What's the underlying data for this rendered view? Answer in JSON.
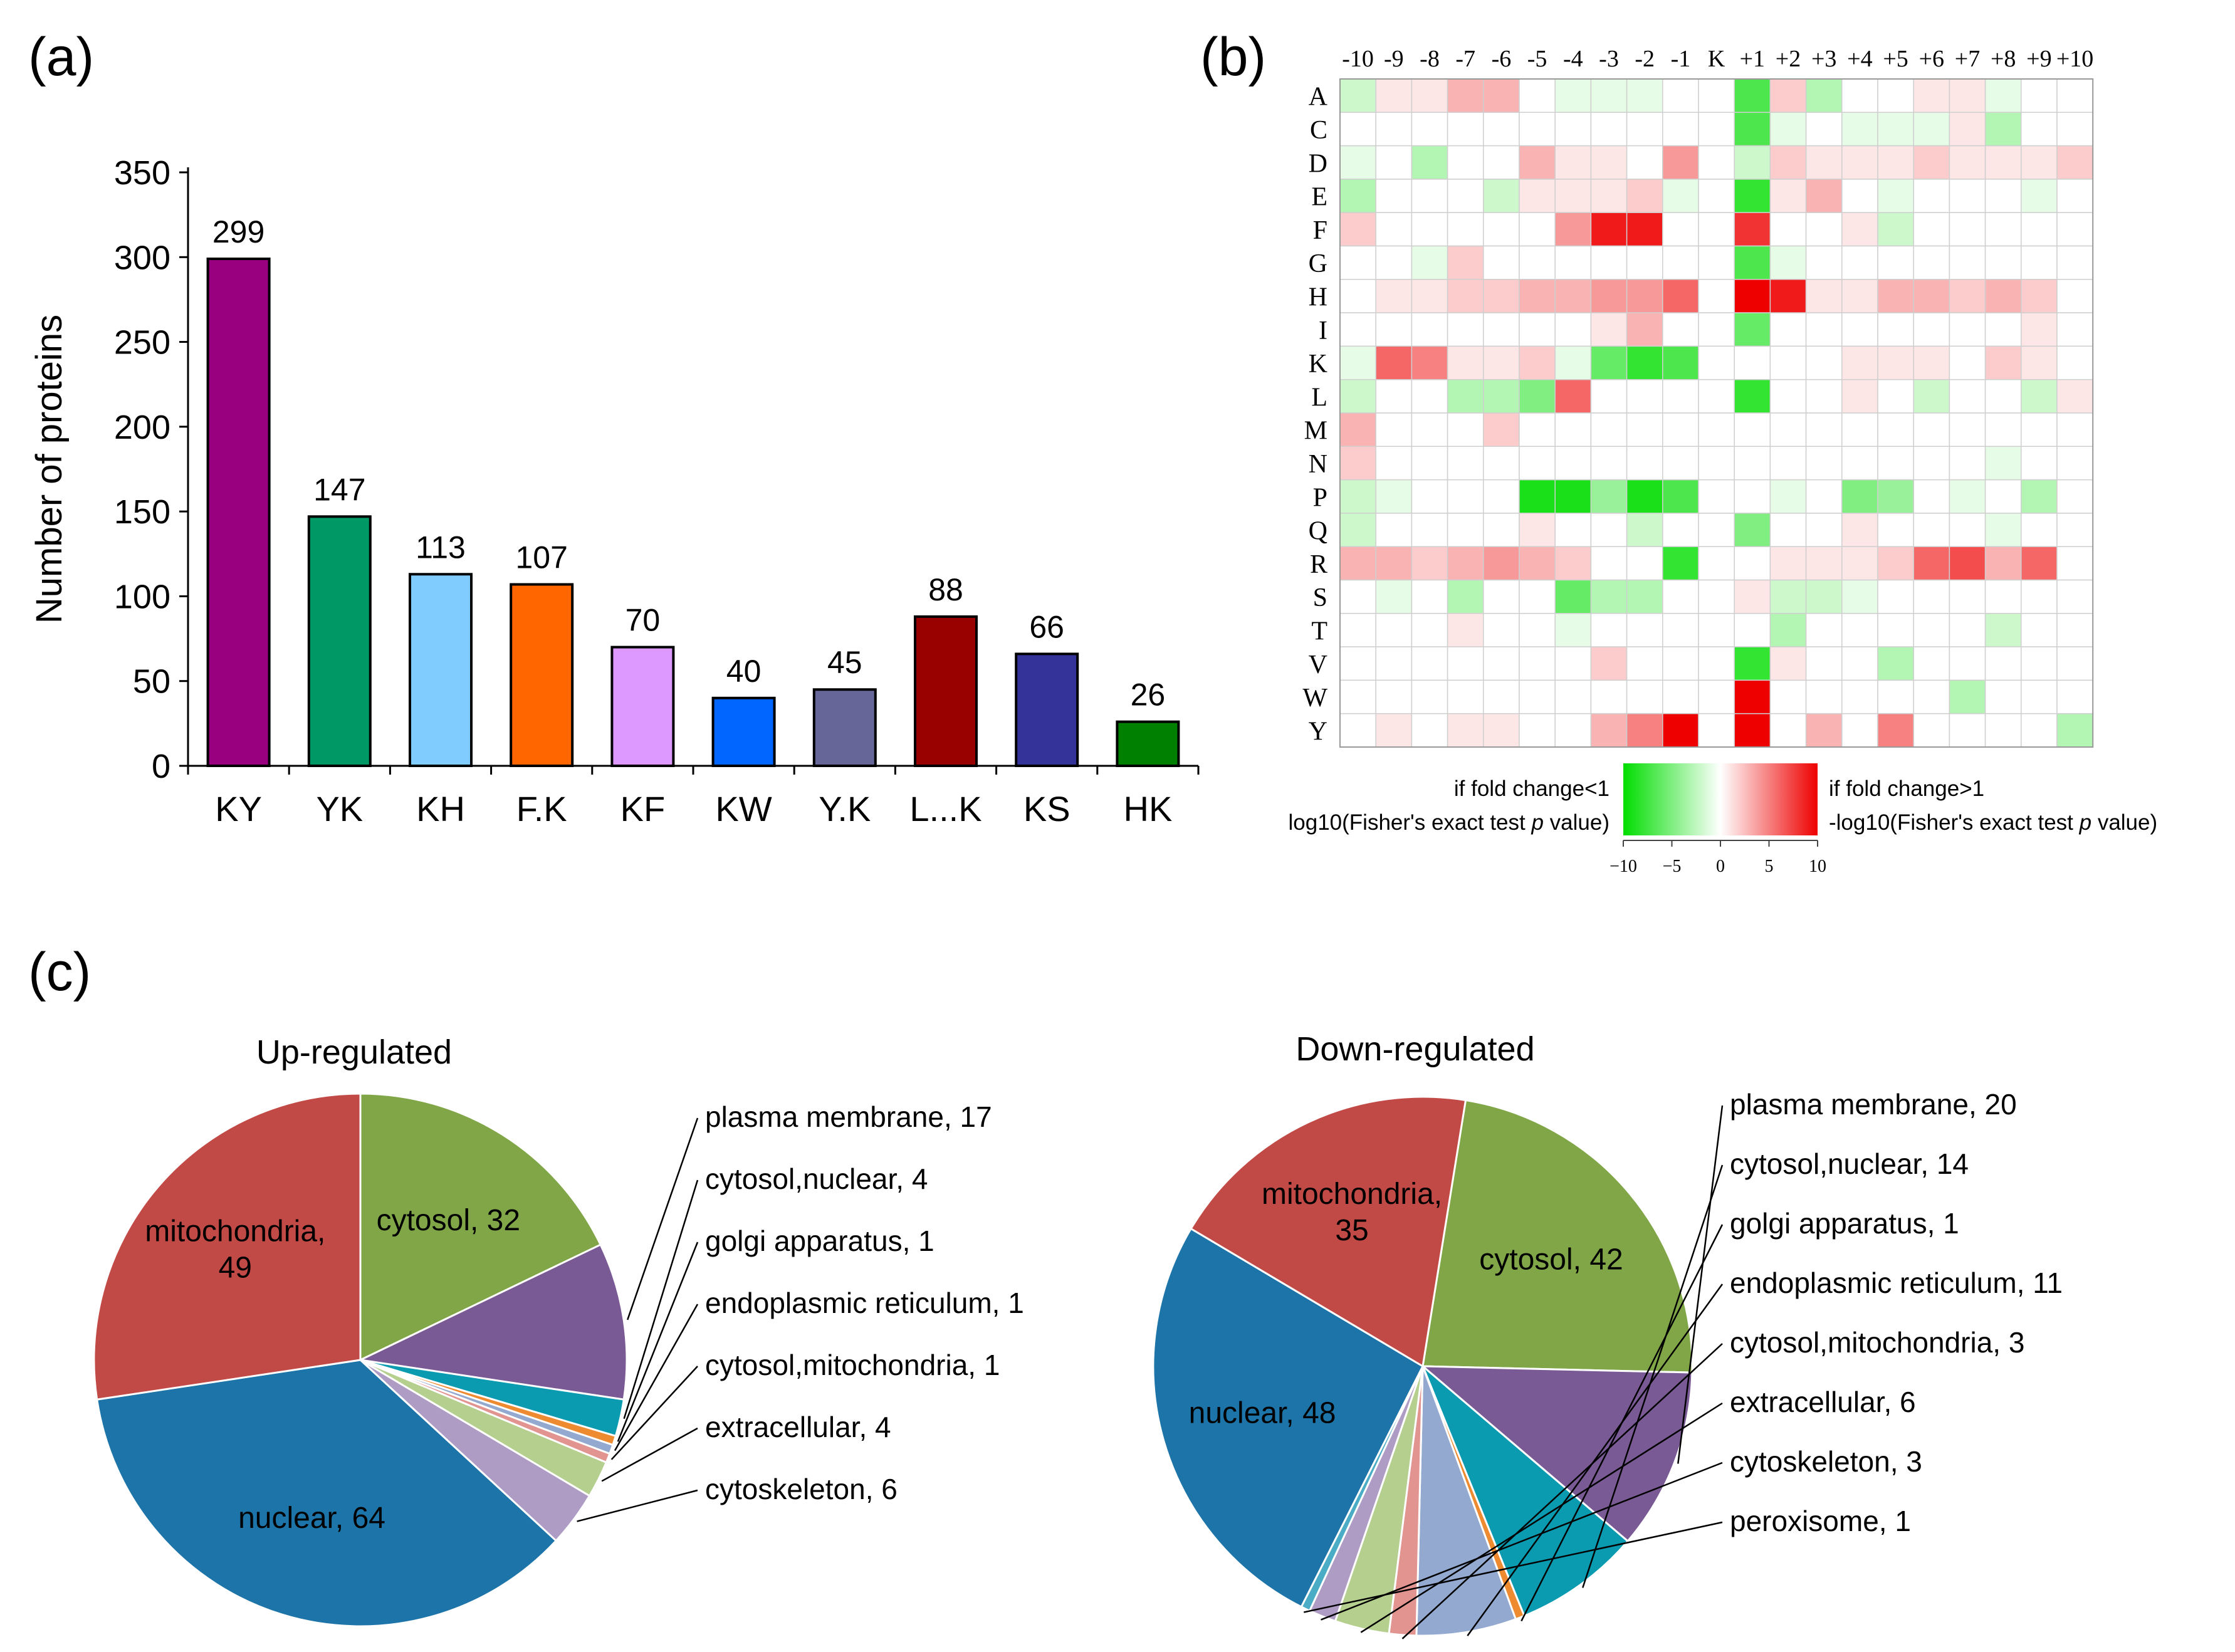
{
  "panel_labels": {
    "a": "(a)",
    "b": "(b)",
    "c": "(c)"
  },
  "chart_data": [
    {
      "type": "bar",
      "panel": "a",
      "title": "",
      "xlabel": "",
      "ylabel": "Number of proteins",
      "ylim": [
        0,
        350
      ],
      "yticks": [
        0,
        50,
        100,
        150,
        200,
        250,
        300,
        350
      ],
      "categories": [
        "KY",
        "YK",
        "KH",
        "F.K",
        "KF",
        "KW",
        "Y.K",
        "L...K",
        "KS",
        "HK"
      ],
      "values": [
        299,
        147,
        113,
        107,
        70,
        40,
        45,
        88,
        66,
        26
      ],
      "colors": [
        "#990080",
        "#009966",
        "#80CCFF",
        "#FF6600",
        "#DD99FF",
        "#0066FF",
        "#666699",
        "#990000",
        "#333399",
        "#008000"
      ]
    },
    {
      "type": "heatmap",
      "panel": "b",
      "columns": [
        "-10",
        "-9",
        "-8",
        "-7",
        "-6",
        "-5",
        "-4",
        "-3",
        "-2",
        "-1",
        "K",
        "+1",
        "+2",
        "+3",
        "+4",
        "+5",
        "+6",
        "+7",
        "+8",
        "+9",
        "+10"
      ],
      "rows": [
        "A",
        "C",
        "D",
        "E",
        "F",
        "G",
        "H",
        "I",
        "K",
        "L",
        "M",
        "N",
        "P",
        "Q",
        "R",
        "S",
        "T",
        "V",
        "W",
        "Y"
      ],
      "values": [
        [
          -2,
          1,
          1,
          3,
          3,
          0,
          -1,
          -1,
          -1,
          0,
          0,
          -7,
          2,
          -3,
          0,
          0,
          1,
          1,
          -1,
          0,
          0
        ],
        [
          0,
          0,
          0,
          0,
          0,
          0,
          0,
          0,
          0,
          0,
          0,
          -7,
          -1,
          0,
          -1,
          -1,
          -1,
          1,
          -3,
          0,
          0
        ],
        [
          -1,
          0,
          -3,
          0,
          0,
          3,
          1,
          1,
          0,
          4,
          0,
          -2,
          2,
          1,
          1,
          1,
          2,
          1,
          1,
          1,
          2
        ],
        [
          -3,
          0,
          0,
          0,
          -2,
          1,
          1,
          1,
          2,
          -1,
          0,
          -8,
          1,
          3,
          0,
          -1,
          0,
          0,
          0,
          -1,
          0
        ],
        [
          2,
          0,
          0,
          0,
          0,
          0,
          4,
          9,
          9,
          0,
          0,
          8,
          0,
          0,
          1,
          -2,
          0,
          0,
          0,
          0,
          0
        ],
        [
          0,
          0,
          -1,
          2,
          0,
          0,
          0,
          0,
          0,
          0,
          0,
          -7,
          -1,
          0,
          0,
          0,
          0,
          0,
          0,
          0,
          0
        ],
        [
          0,
          1,
          1,
          2,
          2,
          3,
          3,
          4,
          4,
          6,
          0,
          10,
          9,
          1,
          1,
          3,
          3,
          2,
          3,
          2,
          0
        ],
        [
          0,
          0,
          0,
          0,
          0,
          0,
          0,
          1,
          3,
          0,
          0,
          -6,
          0,
          0,
          0,
          0,
          0,
          0,
          0,
          1,
          0
        ],
        [
          -1,
          6,
          5,
          1,
          1,
          2,
          -1,
          -6,
          -8,
          -7,
          0,
          0,
          0,
          0,
          1,
          1,
          1,
          0,
          2,
          1,
          0
        ],
        [
          -2,
          0,
          0,
          -3,
          -3,
          -5,
          6,
          0,
          0,
          0,
          0,
          -8,
          0,
          0,
          1,
          0,
          -2,
          0,
          0,
          -2,
          1
        ],
        [
          3,
          0,
          0,
          0,
          2,
          0,
          0,
          0,
          0,
          0,
          0,
          0,
          0,
          0,
          0,
          0,
          0,
          0,
          0,
          0,
          0
        ],
        [
          2,
          0,
          0,
          0,
          0,
          0,
          0,
          0,
          0,
          0,
          0,
          0,
          0,
          0,
          0,
          0,
          0,
          0,
          -1,
          0,
          0
        ],
        [
          -2,
          -1,
          0,
          0,
          0,
          -9,
          -9,
          -4,
          -9,
          -7,
          0,
          0,
          -1,
          0,
          -5,
          -4,
          0,
          -1,
          0,
          -3,
          0
        ],
        [
          -2,
          0,
          0,
          0,
          0,
          1,
          0,
          0,
          -2,
          0,
          0,
          -5,
          0,
          0,
          1,
          0,
          0,
          0,
          -1,
          0,
          0
        ],
        [
          3,
          3,
          2,
          3,
          4,
          3,
          2,
          0,
          0,
          -8,
          0,
          0,
          1,
          1,
          1,
          2,
          6,
          7,
          3,
          6,
          0
        ],
        [
          0,
          -1,
          0,
          -3,
          0,
          0,
          -6,
          -3,
          -3,
          0,
          0,
          1,
          -2,
          -2,
          -1,
          0,
          0,
          0,
          0,
          0,
          0
        ],
        [
          0,
          0,
          0,
          1,
          0,
          0,
          -1,
          0,
          0,
          0,
          0,
          0,
          -3,
          0,
          0,
          0,
          0,
          0,
          -2,
          0,
          0
        ],
        [
          0,
          0,
          0,
          0,
          0,
          0,
          0,
          2,
          0,
          0,
          0,
          -8,
          1,
          0,
          0,
          -3,
          0,
          0,
          0,
          0,
          0
        ],
        [
          0,
          0,
          0,
          0,
          0,
          0,
          0,
          0,
          0,
          0,
          0,
          10,
          0,
          0,
          0,
          0,
          0,
          -3,
          0,
          0,
          0
        ],
        [
          0,
          1,
          0,
          1,
          1,
          0,
          0,
          3,
          5,
          10,
          0,
          10,
          0,
          3,
          0,
          5,
          0,
          0,
          0,
          0,
          -3
        ]
      ],
      "colorbar": {
        "range": [
          -10,
          10
        ],
        "ticks": [
          "−10",
          "−5",
          "0",
          "5",
          "10"
        ],
        "low_color": "#00DD00",
        "mid_color": "#FFFFFF",
        "high_color": "#EE0000",
        "left_label_1": "if fold change<1",
        "left_label_2": "log10(Fisher's exact test ",
        "right_label_1": "if fold change>1",
        "right_label_2": "-log10(Fisher's exact test ",
        "p_symbol": "p",
        "label_tail": " value)"
      }
    },
    {
      "type": "pie",
      "panel": "c",
      "title": "Up-regulated",
      "slices": [
        {
          "label": "cytosol",
          "value": 32,
          "color": "#80A648",
          "text": "cytosol, 32"
        },
        {
          "label": "plasma membrane",
          "value": 17,
          "color": "#7A5A94",
          "text": "plasma membrane, 17"
        },
        {
          "label": "cytosol,nuclear",
          "value": 4,
          "color": "#0B9BB0",
          "text": "cytosol,nuclear, 4"
        },
        {
          "label": "golgi apparatus",
          "value": 1,
          "color": "#EE8A2F",
          "text": "golgi apparatus, 1"
        },
        {
          "label": "endoplasmic reticulum",
          "value": 1,
          "color": "#93A9D0",
          "text": "endoplasmic reticulum, 1"
        },
        {
          "label": "cytosol,mitochondria",
          "value": 1,
          "color": "#E29491",
          "text": "cytosol,mitochondria, 1"
        },
        {
          "label": "extracellular",
          "value": 4,
          "color": "#B5D08E",
          "text": "extracellular, 4"
        },
        {
          "label": "cytoskeleton",
          "value": 6,
          "color": "#AE9CC5",
          "text": "cytoskeleton, 6"
        },
        {
          "label": "nuclear",
          "value": 64,
          "color": "#1C74A8",
          "text": "nuclear, 64"
        },
        {
          "label": "mitochondria",
          "value": 49,
          "color": "#C24A46",
          "text_lines": [
            "mitochondria,",
            "49"
          ]
        }
      ]
    },
    {
      "type": "pie",
      "panel": "c",
      "title": "Down-regulated",
      "slices": [
        {
          "label": "cytosol",
          "value": 42,
          "color": "#80A648",
          "text": "cytosol, 42"
        },
        {
          "label": "plasma membrane",
          "value": 20,
          "color": "#7A5A94",
          "text": "plasma membrane, 20"
        },
        {
          "label": "cytosol,nuclear",
          "value": 14,
          "color": "#0B9BB0",
          "text": "cytosol,nuclear, 14"
        },
        {
          "label": "golgi apparatus",
          "value": 1,
          "color": "#EE8A2F",
          "text": "golgi apparatus, 1"
        },
        {
          "label": "endoplasmic reticulum",
          "value": 11,
          "color": "#93A9D0",
          "text": "endoplasmic reticulum, 11"
        },
        {
          "label": "cytosol,mitochondria",
          "value": 3,
          "color": "#E29491",
          "text": "cytosol,mitochondria, 3"
        },
        {
          "label": "extracellular",
          "value": 6,
          "color": "#B5D08E",
          "text": "extracellular, 6"
        },
        {
          "label": "cytoskeleton",
          "value": 3,
          "color": "#AE9CC5",
          "text": "cytoskeleton, 3"
        },
        {
          "label": "peroxisome",
          "value": 1,
          "color": "#4BACC6",
          "text": "peroxisome, 1"
        },
        {
          "label": "nuclear",
          "value": 48,
          "color": "#1C74A8",
          "text": "nuclear, 48"
        },
        {
          "label": "mitochondria",
          "value": 35,
          "color": "#C24A46",
          "text_lines": [
            "mitochondria,",
            "35"
          ]
        }
      ]
    }
  ]
}
